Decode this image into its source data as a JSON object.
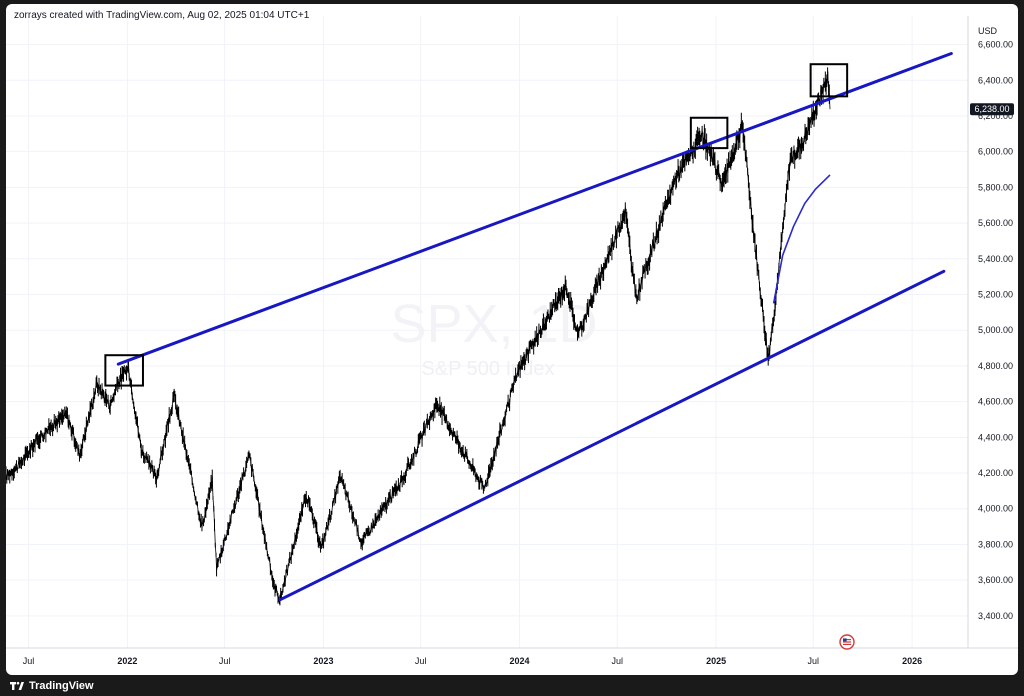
{
  "attribution": "zorrays created with TradingView.com, Aug 02, 2025 01:04 UTC+1",
  "footer": {
    "brand": "TradingView",
    "logo_icon": "tradingview-logo-icon"
  },
  "watermark": {
    "symbol": "SPX, 1D",
    "name": "S&P 500 Index"
  },
  "colors": {
    "trendline": "#1717c4",
    "moving_average": "#2a2ad0",
    "candles": "#000000",
    "grid": "#f0f3fa",
    "price_label_bg": "#131722"
  },
  "chart_data": {
    "type": "line",
    "symbol": "SPX",
    "interval": "1D",
    "currency_label": "USD",
    "current_price": 6238.0,
    "current_price_label": "6,238.00",
    "x_range": [
      "2021-05-20",
      "2026-04-15"
    ],
    "ylim": [
      3220,
      6760
    ],
    "y_ticks": [
      {
        "value": 3400,
        "label": "3,400.00"
      },
      {
        "value": 3600,
        "label": "3,600.00"
      },
      {
        "value": 3800,
        "label": "3,800.00"
      },
      {
        "value": 4000,
        "label": "4,000.00"
      },
      {
        "value": 4200,
        "label": "4,200.00"
      },
      {
        "value": 4400,
        "label": "4,400.00"
      },
      {
        "value": 4600,
        "label": "4,600.00"
      },
      {
        "value": 4800,
        "label": "4,800.00"
      },
      {
        "value": 5000,
        "label": "5,000.00"
      },
      {
        "value": 5200,
        "label": "5,200.00"
      },
      {
        "value": 5400,
        "label": "5,400.00"
      },
      {
        "value": 5600,
        "label": "5,600.00"
      },
      {
        "value": 5800,
        "label": "5,800.00"
      },
      {
        "value": 6000,
        "label": "6,000.00"
      },
      {
        "value": 6200,
        "label": "6,200.00"
      },
      {
        "value": 6400,
        "label": "6,400.00"
      },
      {
        "value": 6600,
        "label": "6,600.00"
      }
    ],
    "x_ticks": [
      {
        "date": "2021-07-01",
        "label": "Jul",
        "bold": false
      },
      {
        "date": "2022-01-01",
        "label": "2022",
        "bold": true
      },
      {
        "date": "2022-07-01",
        "label": "Jul",
        "bold": false
      },
      {
        "date": "2023-01-01",
        "label": "2023",
        "bold": true
      },
      {
        "date": "2023-07-01",
        "label": "Jul",
        "bold": false
      },
      {
        "date": "2024-01-01",
        "label": "2024",
        "bold": true
      },
      {
        "date": "2024-07-01",
        "label": "Jul",
        "bold": false
      },
      {
        "date": "2025-01-01",
        "label": "2025",
        "bold": true
      },
      {
        "date": "2025-07-01",
        "label": "Jul",
        "bold": false
      },
      {
        "date": "2026-01-01",
        "label": "2026",
        "bold": true
      }
    ],
    "series": [
      {
        "name": "SPX",
        "points": [
          [
            "2021-05-20",
            4180
          ],
          [
            "2021-06-15",
            4250
          ],
          [
            "2021-07-15",
            4380
          ],
          [
            "2021-08-15",
            4470
          ],
          [
            "2021-09-10",
            4530
          ],
          [
            "2021-10-04",
            4300
          ],
          [
            "2021-11-05",
            4700
          ],
          [
            "2021-11-30",
            4580
          ],
          [
            "2021-12-15",
            4710
          ],
          [
            "2022-01-03",
            4790
          ],
          [
            "2022-01-27",
            4330
          ],
          [
            "2022-02-24",
            4170
          ],
          [
            "2022-03-29",
            4630
          ],
          [
            "2022-05-20",
            3900
          ],
          [
            "2022-06-08",
            4160
          ],
          [
            "2022-06-16",
            3670
          ],
          [
            "2022-08-16",
            4300
          ],
          [
            "2022-09-30",
            3580
          ],
          [
            "2022-10-12",
            3490
          ],
          [
            "2022-11-30",
            4080
          ],
          [
            "2022-12-28",
            3780
          ],
          [
            "2023-02-02",
            4180
          ],
          [
            "2023-03-13",
            3810
          ],
          [
            "2023-05-31",
            4180
          ],
          [
            "2023-07-31",
            4590
          ],
          [
            "2023-10-27",
            4110
          ],
          [
            "2023-12-29",
            4770
          ],
          [
            "2024-03-28",
            5250
          ],
          [
            "2024-04-19",
            4970
          ],
          [
            "2024-07-16",
            5670
          ],
          [
            "2024-08-05",
            5180
          ],
          [
            "2024-10-18",
            5860
          ],
          [
            "2024-12-06",
            6090
          ],
          [
            "2025-01-13",
            5820
          ],
          [
            "2025-02-19",
            6150
          ],
          [
            "2025-03-13",
            5520
          ],
          [
            "2025-04-08",
            4840
          ],
          [
            "2025-04-21",
            5150
          ],
          [
            "2025-05-19",
            5960
          ],
          [
            "2025-06-10",
            6040
          ],
          [
            "2025-07-28",
            6420
          ],
          [
            "2025-08-01",
            6238
          ]
        ]
      },
      {
        "name": "",
        "points": [
          [
            "2025-04-18",
            5150
          ],
          [
            "2025-05-05",
            5420
          ],
          [
            "2025-05-25",
            5580
          ],
          [
            "2025-06-15",
            5710
          ],
          [
            "2025-07-05",
            5790
          ],
          [
            "2025-08-01",
            5870
          ]
        ]
      }
    ],
    "trendlines": [
      {
        "from": [
          "2021-12-15",
          4810
        ],
        "to": [
          "2026-03-15",
          6550
        ]
      },
      {
        "from": [
          "2022-10-12",
          3490
        ],
        "to": [
          "2026-03-01",
          5330
        ]
      }
    ],
    "boxes": [
      {
        "x0": "2021-11-21",
        "x1": "2022-01-30",
        "y0": 4690,
        "y1": 4860
      },
      {
        "x0": "2024-11-15",
        "x1": "2025-01-22",
        "y0": 6020,
        "y1": 6190
      },
      {
        "x0": "2025-06-26",
        "x1": "2025-09-02",
        "y0": 6310,
        "y1": 6490
      }
    ]
  }
}
